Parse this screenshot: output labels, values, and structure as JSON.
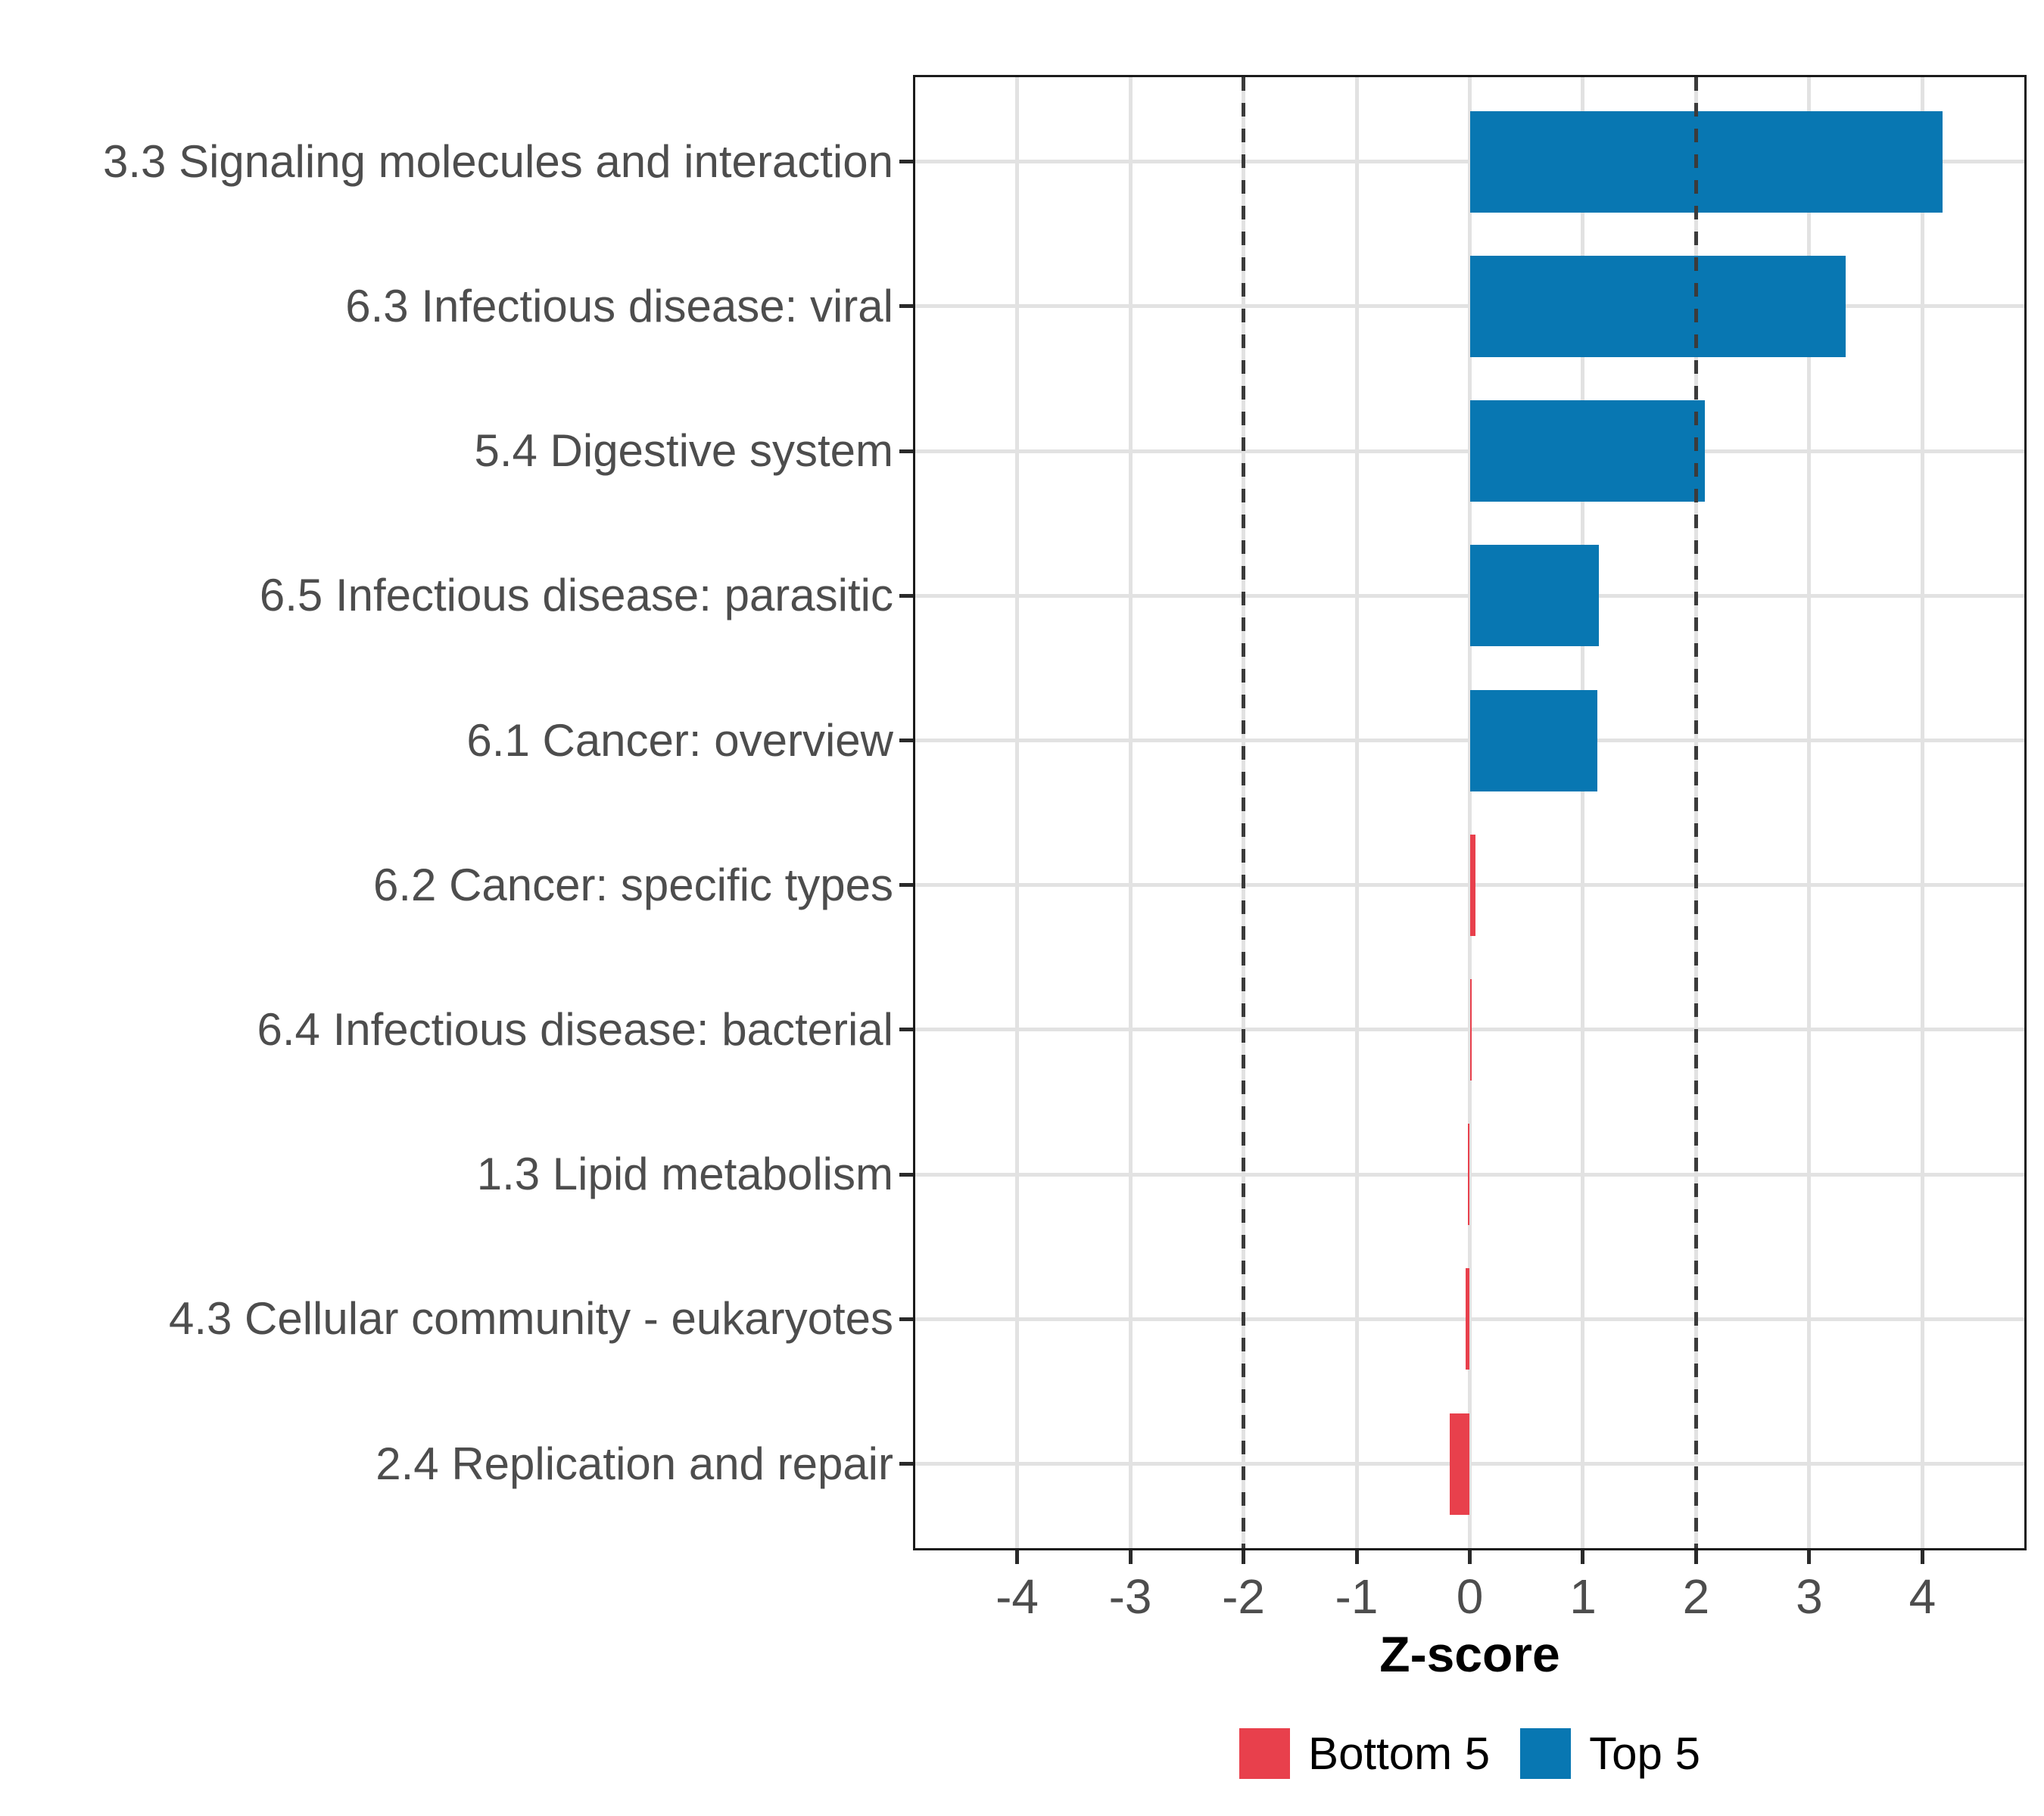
{
  "chart_data": {
    "type": "bar",
    "orientation": "horizontal",
    "title": "",
    "xlabel": "Z-score",
    "categories": [
      "3.3 Signaling molecules and interaction",
      "6.3 Infectious disease: viral",
      "5.4 Digestive system",
      "6.5 Infectious disease: parasitic",
      "6.1 Cancer: overview",
      "6.2 Cancer: specific types",
      "6.4 Infectious disease: bacterial",
      "1.3 Lipid metabolism",
      "4.3 Cellular community - eukaryotes",
      "2.4 Replication and repair"
    ],
    "values": [
      4.18,
      3.32,
      2.08,
      1.14,
      1.13,
      0.05,
      0.02,
      -0.02,
      -0.04,
      -0.18
    ],
    "groups": [
      "Top 5",
      "Top 5",
      "Top 5",
      "Top 5",
      "Top 5",
      "Bottom 5",
      "Bottom 5",
      "Bottom 5",
      "Bottom 5",
      "Bottom 5"
    ],
    "x_ticks": [
      -4,
      -3,
      -2,
      -1,
      0,
      1,
      2,
      3,
      4
    ],
    "xlim": [
      -4.9,
      4.9
    ],
    "reference_lines": [
      -2,
      2
    ],
    "grid": true,
    "legend_position": "bottom",
    "legend": [
      {
        "label": "Bottom 5",
        "color": "#e8404c"
      },
      {
        "label": "Top 5",
        "color": "#0877b2"
      }
    ],
    "colors": {
      "top5": "#0877b2",
      "bottom5": "#e8404c",
      "grid": "#e2e2e2",
      "dashed_line": "#3b3b3b",
      "axis_text": "#4d4d4d",
      "panel_border": "#1b1b1b"
    }
  }
}
